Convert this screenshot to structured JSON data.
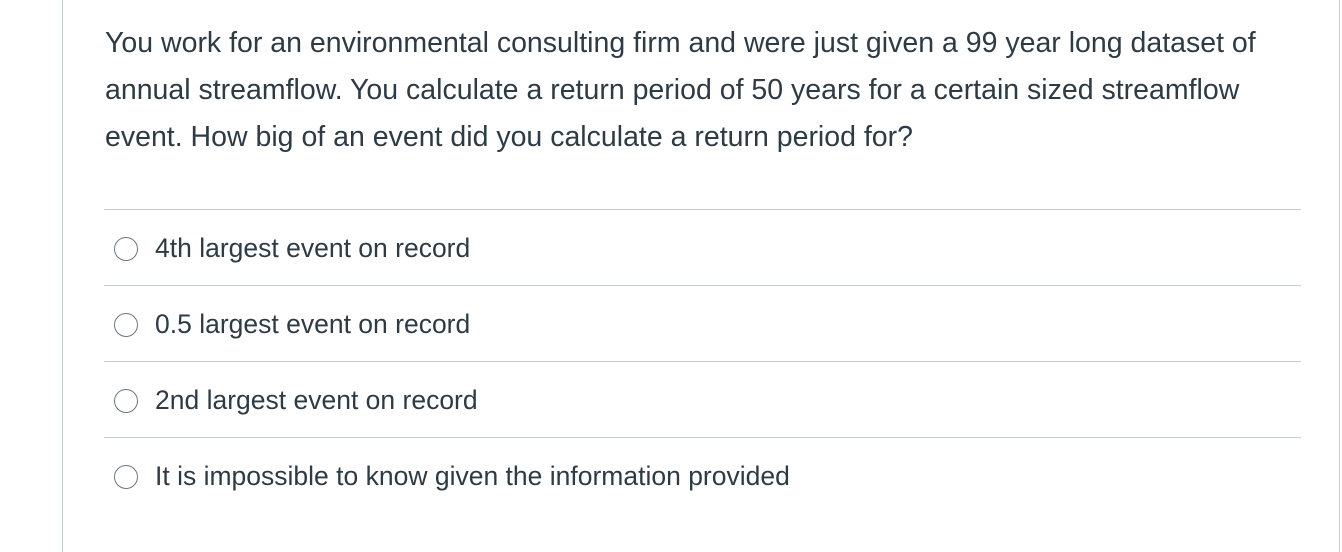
{
  "question": {
    "text": "You work for an environmental consulting firm and were just given a 99 year long dataset of annual streamflow. You calculate a return period of 50 years for a certain sized streamflow event. How big of an event did you calculate a return period for?"
  },
  "answers": [
    {
      "label": "4th largest event on record",
      "selected": false
    },
    {
      "label": "0.5 largest event on record",
      "selected": false
    },
    {
      "label": "2nd largest event on record",
      "selected": false
    },
    {
      "label": "It is impossible to know given the information provided",
      "selected": false
    }
  ]
}
